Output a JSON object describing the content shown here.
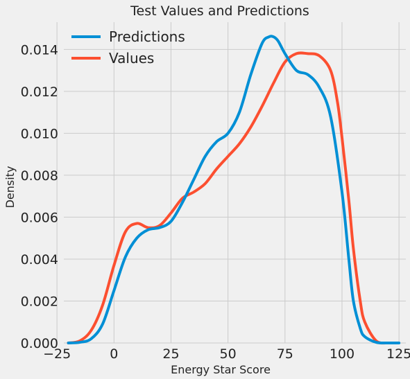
{
  "chart_data": {
    "type": "line",
    "title": "Test Values and Predictions",
    "xlabel": "Energy Star Score",
    "ylabel": "Density",
    "xlim": [
      -22,
      128
    ],
    "ylim": [
      0,
      0.0153
    ],
    "xticks": [
      -25,
      0,
      25,
      50,
      75,
      100,
      125
    ],
    "xtick_labels": [
      "−25",
      "0",
      "25",
      "50",
      "75",
      "100",
      "125"
    ],
    "yticks": [
      0,
      0.002,
      0.004,
      0.006,
      0.008,
      0.01,
      0.012,
      0.014
    ],
    "ytick_labels": [
      "0.000",
      "0.002",
      "0.004",
      "0.006",
      "0.008",
      "0.010",
      "0.012",
      "0.014"
    ],
    "grid": true,
    "legend_position": "top-left",
    "series": [
      {
        "name": "Predictions",
        "color": "#008fd5",
        "x": [
          -20,
          -15,
          -10,
          -5,
          0,
          5,
          10,
          15,
          20,
          25,
          30,
          35,
          40,
          45,
          50,
          55,
          60,
          65,
          68,
          70,
          72,
          75,
          80,
          85,
          90,
          95,
          100,
          103,
          105,
          108,
          110,
          115,
          120,
          125
        ],
        "y": [
          0.0,
          3e-05,
          0.0002,
          0.0009,
          0.0025,
          0.0041,
          0.005,
          0.0054,
          0.0055,
          0.0058,
          0.0067,
          0.0078,
          0.0089,
          0.0096,
          0.01,
          0.011,
          0.0128,
          0.0143,
          0.0146,
          0.0146,
          0.0144,
          0.0138,
          0.013,
          0.0128,
          0.0122,
          0.0108,
          0.0072,
          0.004,
          0.002,
          0.0007,
          0.0003,
          3e-05,
          0.0,
          0.0
        ]
      },
      {
        "name": "Values",
        "color": "#fc4f30",
        "x": [
          -20,
          -15,
          -10,
          -5,
          0,
          5,
          10,
          15,
          20,
          25,
          30,
          35,
          40,
          45,
          50,
          55,
          60,
          65,
          70,
          75,
          80,
          85,
          90,
          95,
          98,
          100,
          103,
          105,
          108,
          110,
          115,
          120
        ],
        "y": [
          0.0,
          0.0001,
          0.0006,
          0.0018,
          0.0037,
          0.0053,
          0.0057,
          0.0055,
          0.0056,
          0.0062,
          0.0069,
          0.0072,
          0.0076,
          0.0083,
          0.0089,
          0.0095,
          0.0103,
          0.0113,
          0.0124,
          0.0134,
          0.0138,
          0.0138,
          0.0137,
          0.013,
          0.0115,
          0.0098,
          0.0068,
          0.0045,
          0.002,
          0.001,
          0.0001,
          0.0
        ]
      }
    ]
  }
}
